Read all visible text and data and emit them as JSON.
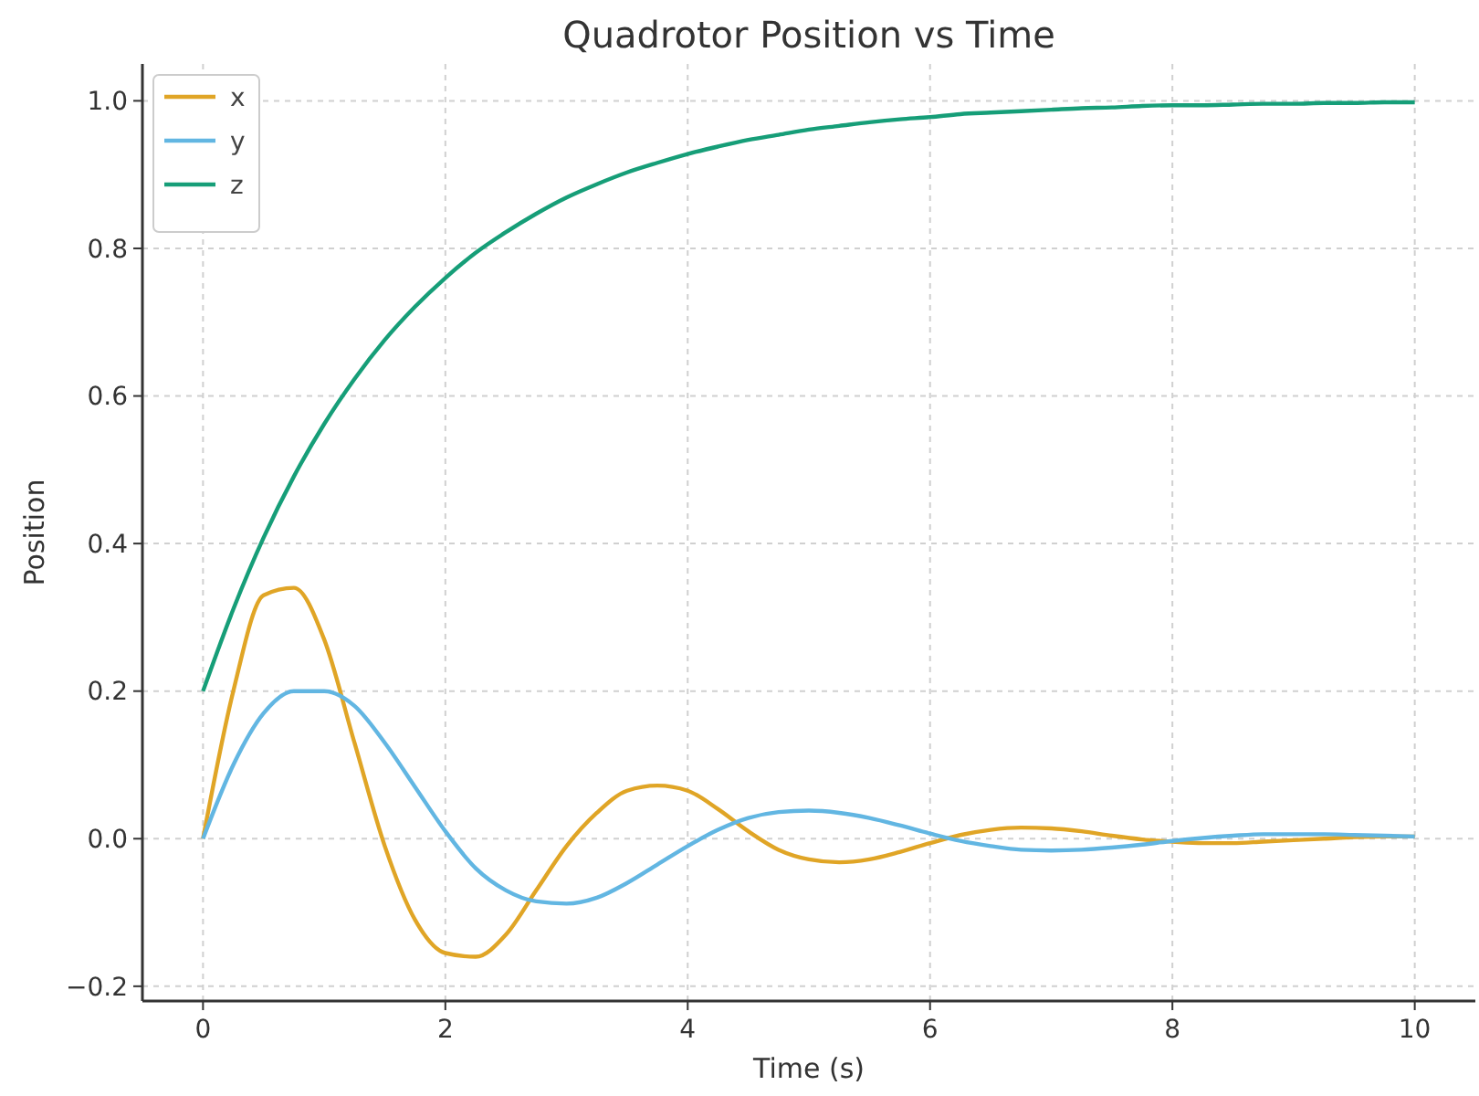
{
  "chart_data": {
    "type": "line",
    "title": "Quadrotor Position vs Time",
    "xlabel": "Time (s)",
    "ylabel": "Position",
    "x": [
      0,
      0.25,
      0.5,
      0.75,
      1,
      1.25,
      1.5,
      1.75,
      2,
      2.25,
      2.5,
      2.75,
      3,
      3.25,
      3.5,
      3.75,
      4,
      4.25,
      4.5,
      4.75,
      5,
      5.25,
      5.5,
      5.75,
      6,
      6.25,
      6.5,
      6.75,
      7,
      7.25,
      7.5,
      7.75,
      8,
      8.25,
      8.5,
      8.75,
      9,
      9.25,
      9.5,
      9.75,
      10
    ],
    "series": [
      {
        "name": "x",
        "color": "#e0a526",
        "values": [
          0,
          0.2,
          0.33,
          0.34,
          0.27,
          0.13,
          -0.01,
          -0.11,
          -0.155,
          -0.16,
          -0.13,
          -0.07,
          -0.01,
          0.035,
          0.065,
          0.072,
          0.065,
          0.04,
          0.01,
          -0.015,
          -0.028,
          -0.032,
          -0.028,
          -0.018,
          -0.006,
          0.005,
          0.012,
          0.015,
          0.014,
          0.01,
          0.004,
          -0.001,
          -0.004,
          -0.006,
          -0.006,
          -0.004,
          -0.002,
          0,
          0.002,
          0.003,
          0.003
        ]
      },
      {
        "name": "y",
        "color": "#62b6e2",
        "values": [
          0,
          0.1,
          0.17,
          0.2,
          0.2,
          0.18,
          0.13,
          0.07,
          0.01,
          -0.04,
          -0.07,
          -0.085,
          -0.088,
          -0.08,
          -0.06,
          -0.035,
          -0.01,
          0.012,
          0.028,
          0.036,
          0.038,
          0.035,
          0.028,
          0.018,
          0.007,
          -0.003,
          -0.01,
          -0.015,
          -0.016,
          -0.015,
          -0.012,
          -0.008,
          -0.003,
          0.001,
          0.004,
          0.006,
          0.006,
          0.006,
          0.005,
          0.004,
          0.003
        ]
      },
      {
        "name": "z",
        "color": "#169e78",
        "values": [
          0.2,
          0.311,
          0.408,
          0.491,
          0.562,
          0.623,
          0.676,
          0.721,
          0.76,
          0.794,
          0.822,
          0.847,
          0.869,
          0.887,
          0.903,
          0.916,
          0.928,
          0.938,
          0.947,
          0.954,
          0.961,
          0.966,
          0.971,
          0.975,
          0.978,
          0.982,
          0.984,
          0.986,
          0.988,
          0.99,
          0.991,
          0.993,
          0.994,
          0.994,
          0.995,
          0.996,
          0.996,
          0.997,
          0.997,
          0.998,
          0.998
        ]
      }
    ],
    "xlim": [
      -0.5,
      10.5
    ],
    "xticks": [
      0,
      2,
      4,
      6,
      8,
      10
    ],
    "ylim": [
      -0.22,
      1.05
    ],
    "yticks": [
      {
        "value": -0.2,
        "label": "−0.2"
      },
      {
        "value": 0,
        "label": "0.0"
      },
      {
        "value": 0.2,
        "label": "0.2"
      },
      {
        "value": 0.4,
        "label": "0.4"
      },
      {
        "value": 0.6,
        "label": "0.6"
      },
      {
        "value": 0.8,
        "label": "0.8"
      },
      {
        "value": 1,
        "label": "1.0"
      }
    ],
    "grid": true,
    "legend": "top left",
    "line_style": "solid"
  }
}
